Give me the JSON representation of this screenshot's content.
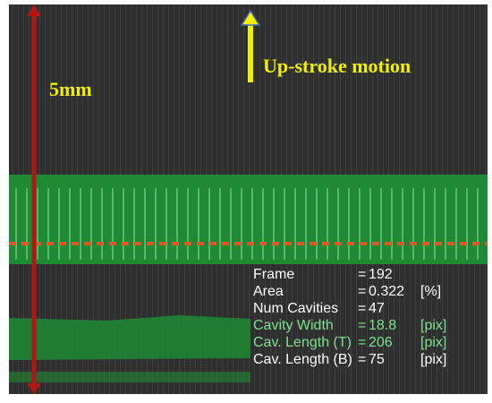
{
  "scale_label": "5mm",
  "motion_label": "Up-stroke motion",
  "readout": {
    "rows": [
      [
        "Frame",
        "=",
        "192",
        ""
      ],
      [
        "Area",
        "=",
        "0.322",
        "[%]"
      ],
      [
        "Num Cavities",
        "=",
        "47",
        ""
      ],
      [
        "Cavity Width",
        "=",
        "18.8",
        "[pix]"
      ],
      [
        "Cav. Length (T)",
        "=",
        "206",
        "[pix]"
      ],
      [
        "Cav. Length (B)",
        "=",
        "75",
        "[pix]"
      ]
    ]
  }
}
